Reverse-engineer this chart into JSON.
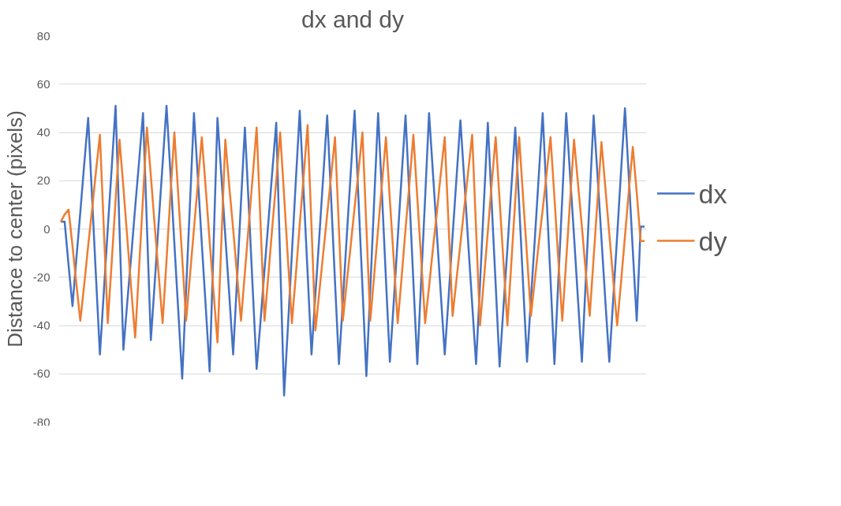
{
  "chart_data": {
    "type": "line",
    "title": "dx and dy",
    "ylabel": "Distance to center (pixels)",
    "categories": [
      null,
      null,
      null,
      null,
      null,
      null,
      null,
      null,
      null,
      null,
      null,
      null,
      null,
      null,
      null,
      null,
      null,
      null,
      null,
      null,
      null,
      null,
      null,
      null,
      null,
      null,
      null,
      null,
      null,
      null,
      null,
      null,
      null,
      null,
      null,
      null,
      null,
      null,
      null,
      null,
      null,
      null,
      null,
      null,
      null,
      null,
      null,
      null,
      null,
      null,
      null,
      null,
      null,
      null,
      null,
      null,
      null,
      null,
      null,
      null,
      null,
      null,
      null,
      null,
      null,
      null,
      null,
      null,
      null,
      null,
      null,
      null,
      null,
      null,
      null,
      null,
      null,
      null,
      null,
      null,
      null,
      null,
      null,
      null,
      null,
      null,
      null,
      null,
      null,
      null,
      null,
      null,
      null,
      null,
      null,
      null,
      null,
      null,
      null,
      null,
      null,
      null,
      null,
      null,
      null,
      null,
      null,
      null,
      null,
      null,
      null,
      null,
      null,
      null,
      null,
      null,
      null,
      null,
      null,
      null,
      null,
      null,
      null,
      null,
      null,
      null,
      null,
      null,
      null,
      null,
      null,
      null,
      null,
      null,
      null,
      null,
      null,
      null,
      null,
      null,
      null,
      null,
      null,
      null,
      null,
      null,
      null,
      null,
      null,
      null
    ],
    "ylim": [
      -80,
      80
    ],
    "yticks": [
      -80,
      -60,
      -40,
      -20,
      0,
      20,
      40,
      60,
      80
    ],
    "grid": "y",
    "legend": "right",
    "series": [
      {
        "name": "dx",
        "color": "#4472c4",
        "values": [
          3,
          3,
          -15,
          -32,
          -12,
          7,
          27,
          46,
          13,
          -20,
          -52,
          -26,
          0,
          25,
          51,
          0,
          -50,
          -30,
          -11,
          9,
          28,
          48,
          1,
          -46,
          -22,
          3,
          27,
          51,
          23,
          -6,
          -34,
          -62,
          -25,
          11,
          48,
          21,
          -6,
          -32,
          -59,
          -7,
          46,
          22,
          -3,
          -27,
          -52,
          -21,
          11,
          42,
          9,
          -25,
          -58,
          -38,
          -17,
          3,
          24,
          44,
          -13,
          -69,
          -40,
          -10,
          20,
          49,
          15,
          -18,
          -52,
          -27,
          -3,
          22,
          47,
          13,
          -22,
          -56,
          -30,
          -3,
          23,
          49,
          12,
          -24,
          -61,
          -25,
          12,
          48,
          14,
          -21,
          -55,
          -30,
          -4,
          22,
          47,
          13,
          -22,
          -56,
          -21,
          13,
          48,
          23,
          -2,
          -27,
          -52,
          -28,
          -3,
          21,
          45,
          20,
          -6,
          -31,
          -56,
          -23,
          11,
          44,
          10,
          -23,
          -57,
          -32,
          -8,
          17,
          42,
          10,
          -23,
          -55,
          -29,
          -4,
          22,
          48,
          13,
          -21,
          -56,
          -21,
          13,
          48,
          22,
          -3,
          -29,
          -55,
          -21,
          13,
          47,
          22,
          -4,
          -30,
          -55,
          -29,
          -3,
          24,
          50,
          21,
          -9,
          -38,
          1,
          1
        ]
      },
      {
        "name": "dy",
        "color": "#ed7d31",
        "values": [
          3,
          6,
          8,
          -7,
          -23,
          -38,
          -23,
          -7,
          8,
          24,
          39,
          0,
          -39,
          -14,
          12,
          37,
          17,
          -4,
          -25,
          -45,
          -16,
          13,
          42,
          22,
          1,
          -19,
          -39,
          -13,
          14,
          40,
          14,
          -12,
          -38,
          -19,
          0,
          19,
          38,
          17,
          -5,
          -26,
          -47,
          -5,
          37,
          18,
          0,
          -19,
          -38,
          -18,
          2,
          22,
          42,
          2,
          -38,
          -19,
          1,
          20,
          40,
          14,
          -13,
          -39,
          -19,
          2,
          22,
          43,
          1,
          -42,
          -26,
          -10,
          6,
          22,
          38,
          0,
          -38,
          -22,
          -7,
          9,
          24,
          40,
          1,
          -38,
          -19,
          0,
          19,
          38,
          12,
          -13,
          -39,
          -20,
          0,
          19,
          39,
          13,
          -13,
          -39,
          -24,
          -8,
          7,
          23,
          38,
          1,
          -36,
          -21,
          -6,
          9,
          24,
          39,
          0,
          -40,
          -21,
          -1,
          19,
          38,
          12,
          -14,
          -40,
          -14,
          12,
          38,
          13,
          -11,
          -36,
          -21,
          -6,
          8,
          23,
          38,
          13,
          -13,
          -38,
          -13,
          12,
          37,
          19,
          1,
          -18,
          -36,
          -12,
          12,
          36,
          17,
          -2,
          -21,
          -40,
          -22,
          -3,
          16,
          34,
          15,
          -5,
          -5
        ]
      }
    ]
  }
}
